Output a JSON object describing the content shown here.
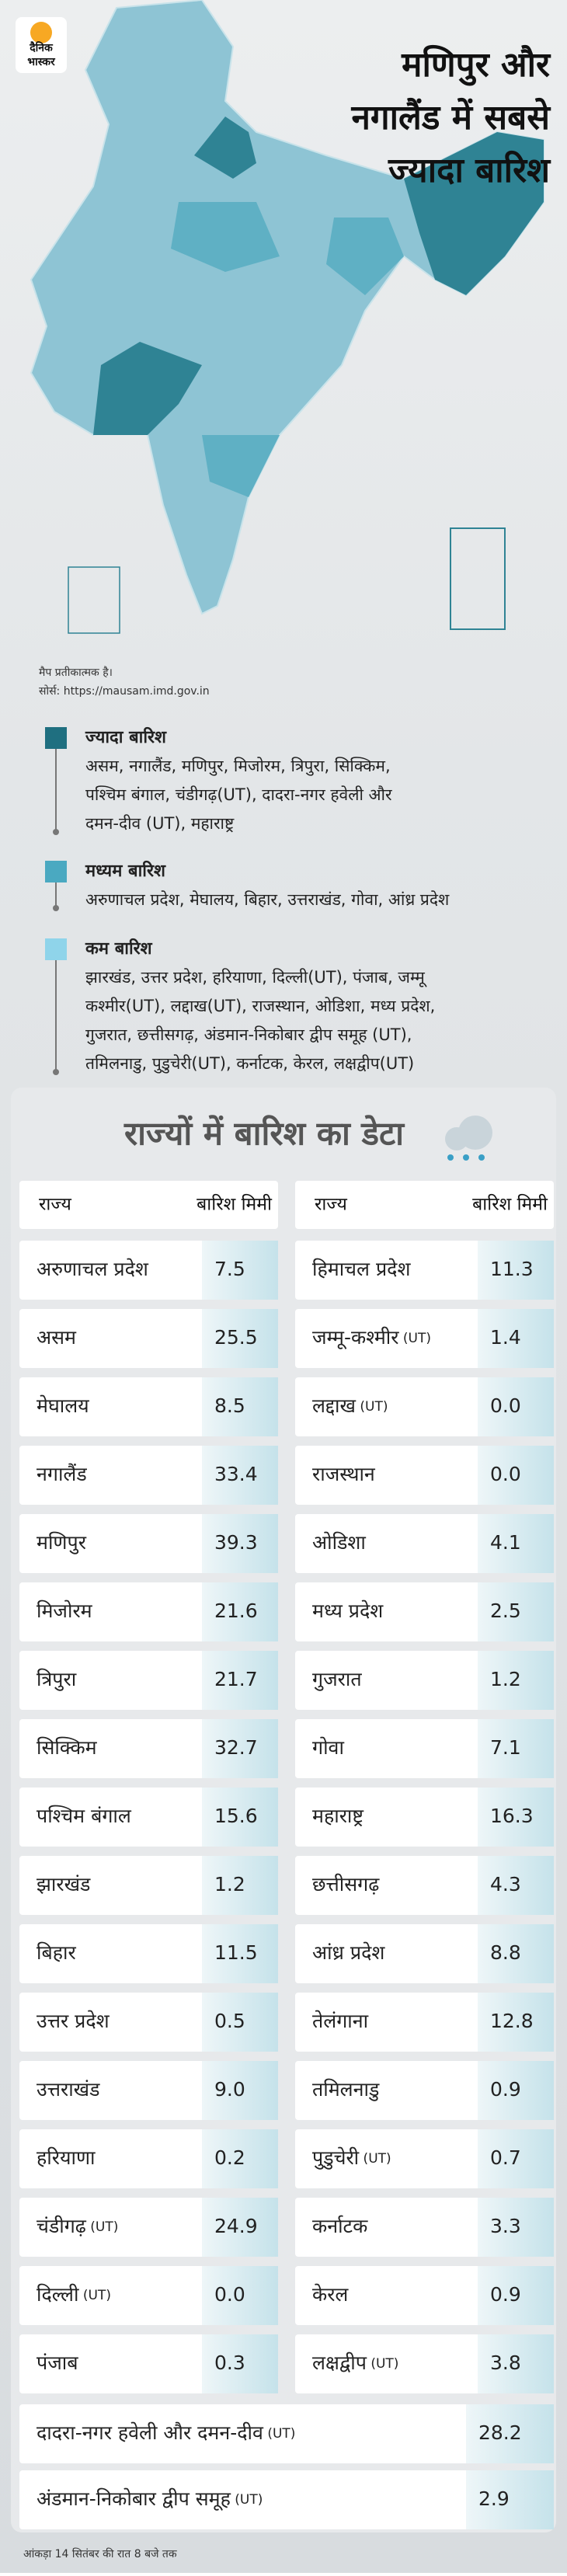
{
  "logo": [
    "दैनिक",
    "भास्कर"
  ],
  "title": [
    "मणिपुर और",
    "नगालैंड में सबसे",
    "ज्यादा बारिश"
  ],
  "map_note": [
    "मैप प्रतीकात्मक है।",
    "सोर्स: https://mausam.imd.gov.in"
  ],
  "legend": [
    {
      "heading": "ज्यादा बारिश",
      "lines": [
        "असम, नगालैंड, मणिपुर, मिजोरम, त्रिपुरा, सिक्किम,",
        "पश्चिम बंगाल, चंडीगढ़(UT), दादरा-नगर हवेली और",
        "दमन-दीव (UT), महाराष्ट्र"
      ]
    },
    {
      "heading": "मध्यम बारिश",
      "lines": [
        "अरुणाचल प्रदेश, मेघालय, बिहार, उत्तराखंड, गोवा, आंध्र प्रदेश"
      ]
    },
    {
      "heading": "कम बारिश",
      "lines": [
        "झारखंड, उत्तर प्रदेश, हरियाणा, दिल्ली(UT), पंजाब, जम्मू",
        "कश्मीर(UT), लद्दाख(UT), राजस्थान, ओडिशा, मध्य प्रदेश,",
        "गुजरात, छत्तीसगढ़, अंडमान-निकोबार द्वीप समूह (UT),",
        "तमिलनाडु, पुडुचेरी(UT), कर्नाटक, केरल, लक्षद्वीप(UT)"
      ]
    }
  ],
  "table": {
    "title": "राज्यों में बारिश का डेटा",
    "headers": [
      [
        "राज्य",
        "बारिश मिमी"
      ],
      [
        "राज्य",
        "बारिश मिमी"
      ]
    ],
    "left": [
      {
        "name": "अरुणाचल प्रदेश",
        "value": "7.5"
      },
      {
        "name": "असम",
        "value": "25.5"
      },
      {
        "name": "मेघालय",
        "value": "8.5"
      },
      {
        "name": "नगालैंड",
        "value": "33.4"
      },
      {
        "name": "मणिपुर",
        "value": "39.3"
      },
      {
        "name": "मिजोरम",
        "value": "21.6"
      },
      {
        "name": "त्रिपुरा",
        "value": "21.7"
      },
      {
        "name": "सिक्किम",
        "value": "32.7"
      },
      {
        "name": "पश्चिम बंगाल",
        "value": "15.6"
      },
      {
        "name": "झारखंड",
        "value": "1.2"
      },
      {
        "name": "बिहार",
        "value": "11.5"
      },
      {
        "name": "उत्तर प्रदेश",
        "value": "0.5"
      },
      {
        "name": "उत्तराखंड",
        "value": "9.0"
      },
      {
        "name": "हरियाणा",
        "value": "0.2"
      },
      {
        "name": "चंडीगढ़",
        "tag": "(UT)",
        "value": "24.9"
      },
      {
        "name": "दिल्ली",
        "tag": "(UT)",
        "value": "0.0"
      },
      {
        "name": "पंजाब",
        "value": "0.3"
      }
    ],
    "right": [
      {
        "name": "हिमाचल प्रदेश",
        "value": "11.3"
      },
      {
        "name": "जम्मू-कश्मीर",
        "tag": "(UT)",
        "value": "1.4"
      },
      {
        "name": "लद्दाख",
        "tag": "(UT)",
        "value": "0.0"
      },
      {
        "name": "राजस्थान",
        "value": "0.0"
      },
      {
        "name": "ओडिशा",
        "value": "4.1"
      },
      {
        "name": "मध्य प्रदेश",
        "value": "2.5"
      },
      {
        "name": "गुजरात",
        "value": "1.2"
      },
      {
        "name": "गोवा",
        "value": "7.1"
      },
      {
        "name": "महाराष्ट्र",
        "value": "16.3"
      },
      {
        "name": "छत्तीसगढ़",
        "value": "4.3"
      },
      {
        "name": "आंध्र प्रदेश",
        "value": "8.8"
      },
      {
        "name": "तेलंगाना",
        "value": "12.8"
      },
      {
        "name": "तमिलनाडु",
        "value": "0.9"
      },
      {
        "name": "पुडुचेरी",
        "tag": "(UT)",
        "value": "0.7"
      },
      {
        "name": "कर्नाटक",
        "value": "3.3"
      },
      {
        "name": "केरल",
        "value": "0.9"
      },
      {
        "name": "लक्षद्वीप",
        "tag": "(UT)",
        "value": "3.8"
      }
    ],
    "wide": [
      {
        "name": "दादरा-नगर हवेली और दमन-दीव",
        "tag": "(UT)",
        "value": "28.2"
      },
      {
        "name": "अंडमान-निकोबार द्वीप समूह",
        "tag": "(UT)",
        "value": "2.9"
      }
    ]
  },
  "footer": "आंकड़ा 14 सितंबर की रात 8 बजे तक"
}
